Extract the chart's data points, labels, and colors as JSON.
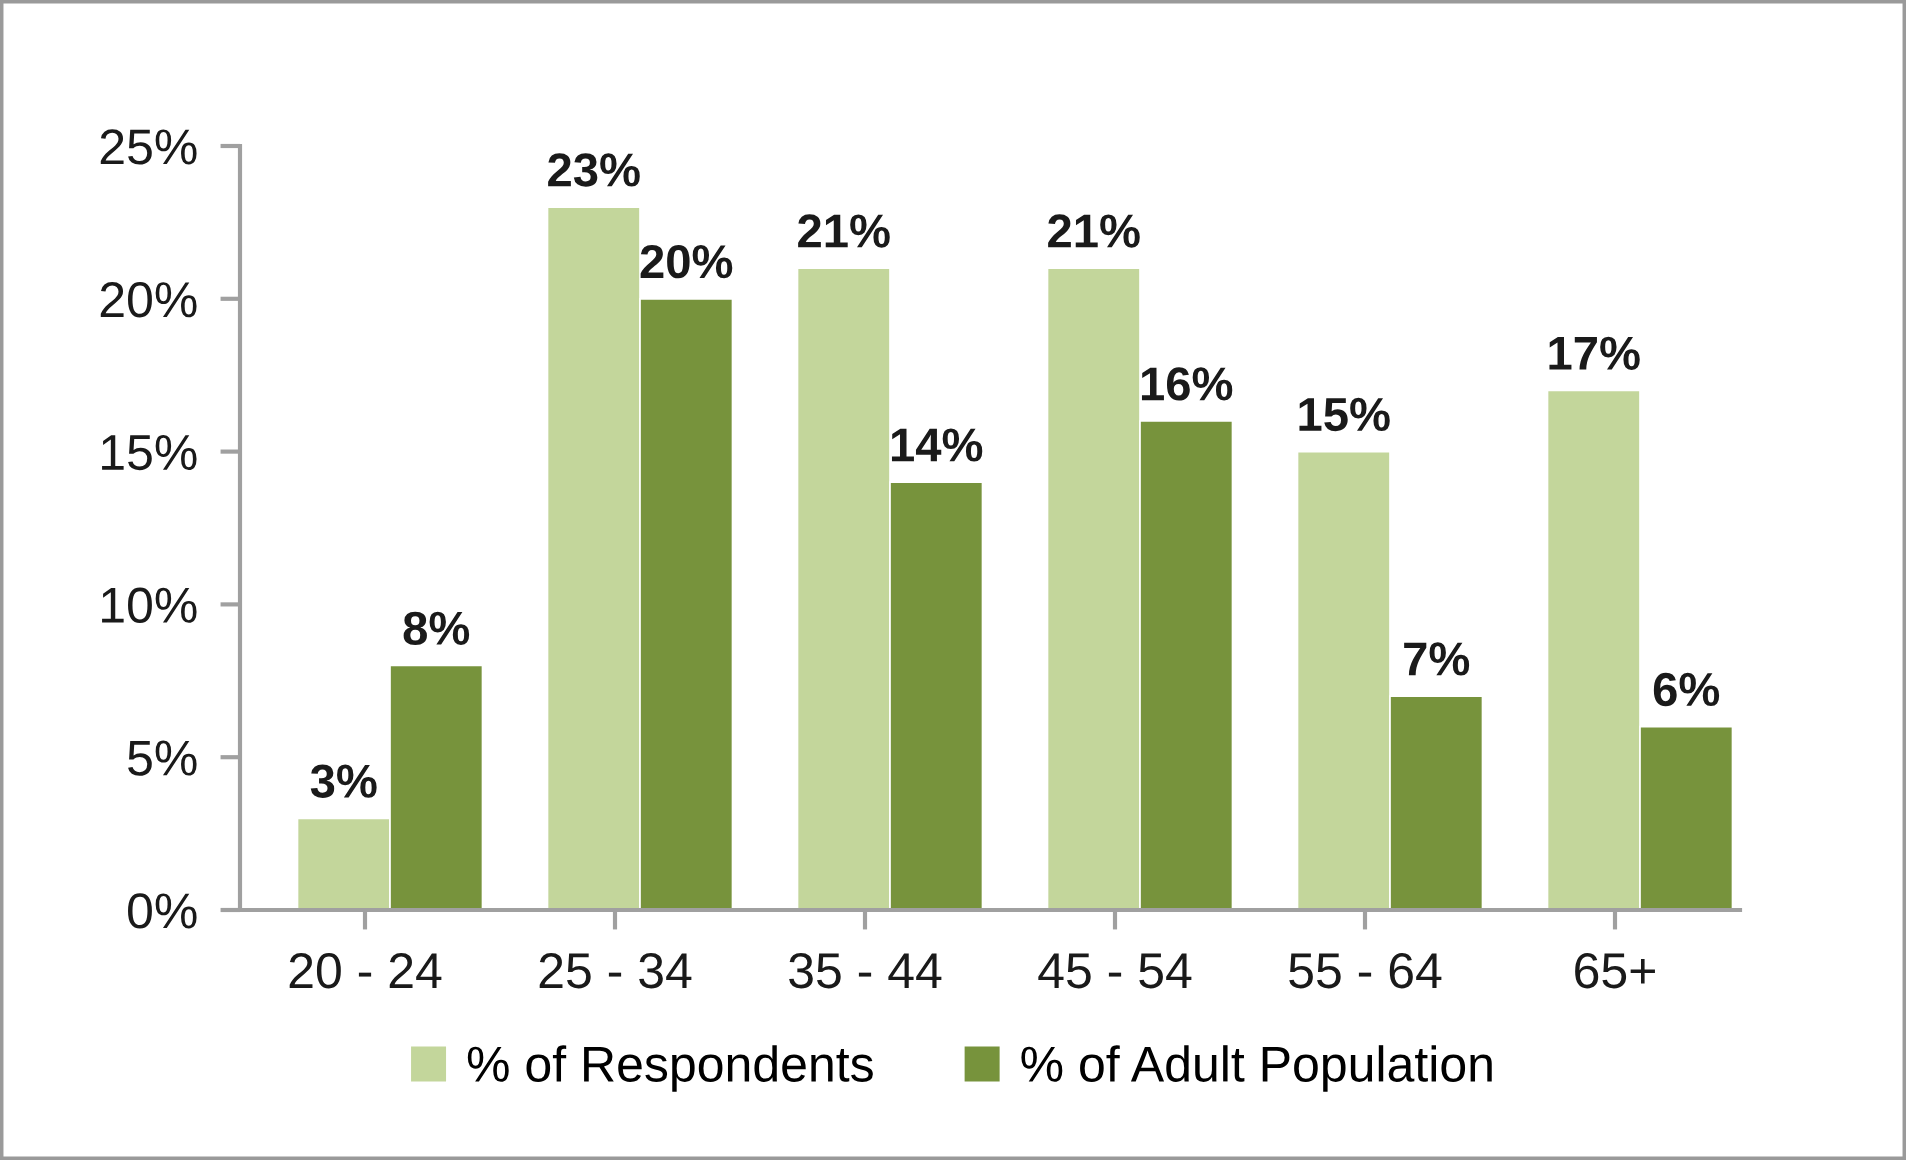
{
  "chart_data": {
    "type": "bar",
    "categories": [
      "20 - 24",
      "25 - 34",
      "35 - 44",
      "45 - 54",
      "55 - 64",
      "65+"
    ],
    "series": [
      {
        "name": "% of Respondents",
        "color": "#c3d69b",
        "values": [
          3,
          23,
          21,
          21,
          15,
          17
        ],
        "value_labels": [
          "3%",
          "23%",
          "21%",
          "21%",
          "15%",
          "17%"
        ]
      },
      {
        "name": "% of Adult Population",
        "color": "#77933c",
        "values": [
          8,
          20,
          14,
          16,
          7,
          6
        ],
        "value_labels": [
          "8%",
          "20%",
          "14%",
          "16%",
          "7%",
          "6%"
        ]
      }
    ],
    "ylim": [
      0,
      25
    ],
    "yticks": [
      {
        "value": 0,
        "label": "0%"
      },
      {
        "value": 5,
        "label": "5%"
      },
      {
        "value": 10,
        "label": "10%"
      },
      {
        "value": 15,
        "label": "15%"
      },
      {
        "value": 20,
        "label": "20%"
      },
      {
        "value": 25,
        "label": "25%"
      }
    ],
    "grid": false,
    "legend": "bottom"
  }
}
